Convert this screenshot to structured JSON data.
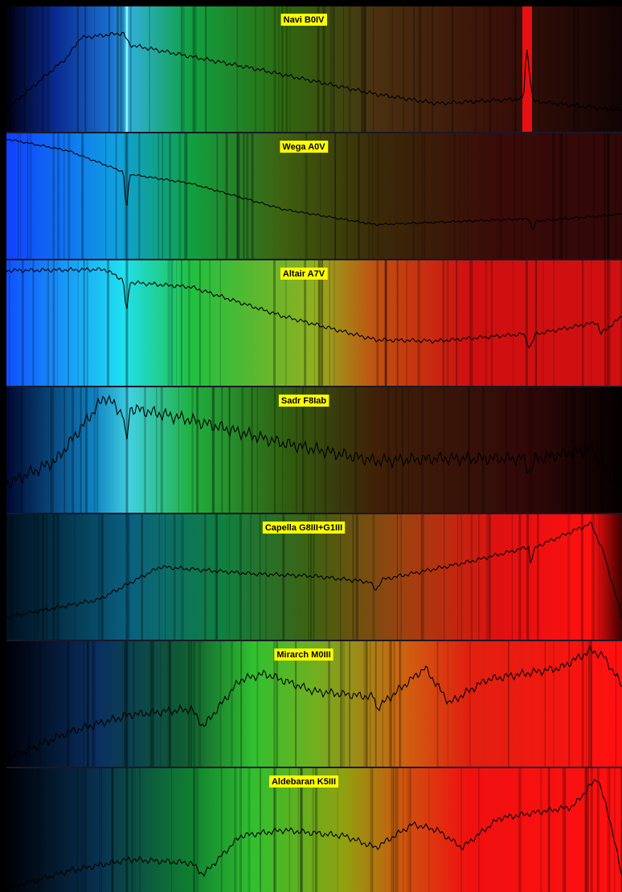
{
  "panels": [
    {
      "label": "Navi  B0IV"
    },
    {
      "label": "Wega  A0V"
    },
    {
      "label": "Altair  A7V"
    },
    {
      "label": "Sadr  F8Iab"
    },
    {
      "label": "Capella G8III+G1III"
    },
    {
      "label": "Mirarch M0III"
    },
    {
      "label": "Aldebaran K5III"
    }
  ]
}
